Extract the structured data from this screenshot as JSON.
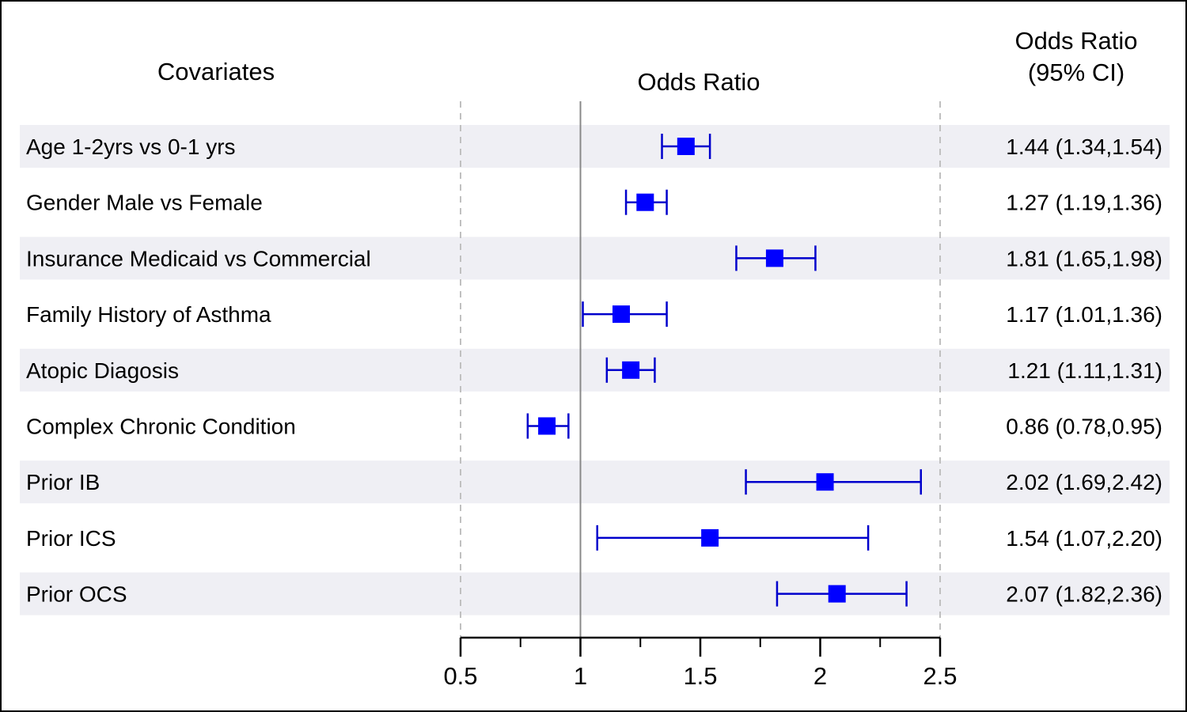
{
  "chart_data": {
    "type": "forest",
    "title": "",
    "covariates_header": "Covariates",
    "xlabel": "Odds Ratio",
    "value_header_line1": "Odds Ratio",
    "value_header_line2": "(95% CI)",
    "xlim": [
      0.5,
      2.5
    ],
    "major_ticks": [
      0.5,
      1,
      1.5,
      2,
      2.5
    ],
    "major_tick_labels": [
      "0.5",
      "1",
      "1.5",
      "2",
      "2.5"
    ],
    "minor_ticks": [
      0.75,
      1.25,
      1.75,
      2.25
    ],
    "reference_line": 1,
    "reference_dashed": [
      0.5,
      2.5
    ],
    "marker": "square",
    "colors": {
      "marker": "#0000ff",
      "whisker": "#0000cc",
      "band": "#efeff4",
      "refline": "#888888",
      "dashline": "#c0c0c0"
    },
    "rows": [
      {
        "label": "Age 1-2yrs vs 0-1 yrs",
        "or": 1.44,
        "lo": 1.34,
        "hi": 1.54,
        "text": "1.44 (1.34,1.54)"
      },
      {
        "label": "Gender Male vs Female",
        "or": 1.27,
        "lo": 1.19,
        "hi": 1.36,
        "text": "1.27 (1.19,1.36)"
      },
      {
        "label": "Insurance Medicaid vs Commercial",
        "or": 1.81,
        "lo": 1.65,
        "hi": 1.98,
        "text": "1.81 (1.65,1.98)"
      },
      {
        "label": "Family History of Asthma",
        "or": 1.17,
        "lo": 1.01,
        "hi": 1.36,
        "text": "1.17 (1.01,1.36)"
      },
      {
        "label": "Atopic Diagosis",
        "or": 1.21,
        "lo": 1.11,
        "hi": 1.31,
        "text": "1.21 (1.11,1.31)"
      },
      {
        "label": "Complex Chronic Condition",
        "or": 0.86,
        "lo": 0.78,
        "hi": 0.95,
        "text": "0.86 (0.78,0.95)"
      },
      {
        "label": "Prior IB",
        "or": 2.02,
        "lo": 1.69,
        "hi": 2.42,
        "text": "2.02 (1.69,2.42)"
      },
      {
        "label": "Prior ICS",
        "or": 1.54,
        "lo": 1.07,
        "hi": 2.2,
        "text": "1.54 (1.07,2.20)"
      },
      {
        "label": "Prior OCS",
        "or": 2.07,
        "lo": 1.82,
        "hi": 2.36,
        "text": "2.07 (1.82,2.36)"
      }
    ]
  }
}
